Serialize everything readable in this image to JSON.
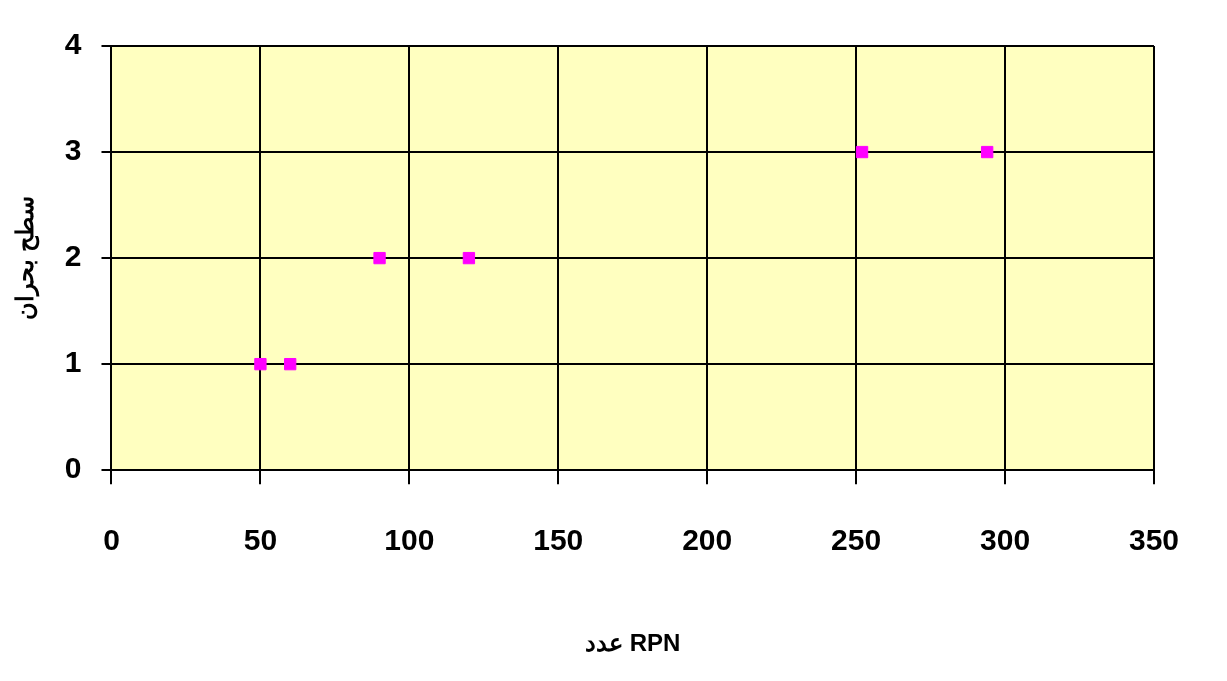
{
  "chart_data": {
    "type": "scatter",
    "xlabel": "عدد RPN",
    "ylabel": "سطح بحران",
    "x": [
      50,
      60,
      90,
      120,
      252,
      294
    ],
    "series": [
      {
        "color": "#ff00ff",
        "values": [
          1,
          1,
          2,
          2,
          3,
          3
        ]
      }
    ],
    "xlim": [
      0,
      350
    ],
    "xticks": [
      0,
      50,
      100,
      150,
      200,
      250,
      300,
      350
    ],
    "ylim": [
      0,
      4
    ],
    "yticks": [
      0,
      1,
      2,
      3,
      4
    ],
    "grid": true,
    "legend": false,
    "marker": "square"
  }
}
